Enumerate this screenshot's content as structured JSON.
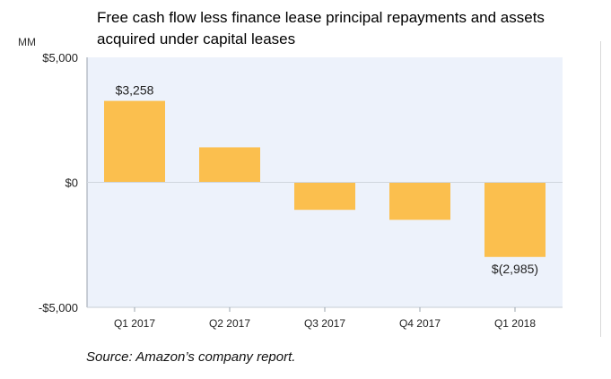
{
  "chart_data": {
    "type": "bar",
    "title": "Free cash flow less finance lease principal repayments and assets acquired under capital leases",
    "unit_label": "MM",
    "categories": [
      "Q1 2017",
      "Q2 2017",
      "Q3 2017",
      "Q4 2017",
      "Q1 2018"
    ],
    "values": [
      3258,
      1400,
      -1100,
      -1500,
      -2985
    ],
    "data_labels": [
      "$3,258",
      "",
      "",
      "",
      "$(2,985)"
    ],
    "ylim": [
      -5000,
      5000
    ],
    "yticks": [
      {
        "value": 5000,
        "label": "$5,000"
      },
      {
        "value": 0,
        "label": "$0"
      },
      {
        "value": -5000,
        "label": "-$5,000"
      }
    ],
    "bar_color": "#fbbf4e",
    "plot_background": "#edf2fb",
    "grid": false,
    "legend": "none"
  },
  "source": "Source: Amazon’s company report."
}
